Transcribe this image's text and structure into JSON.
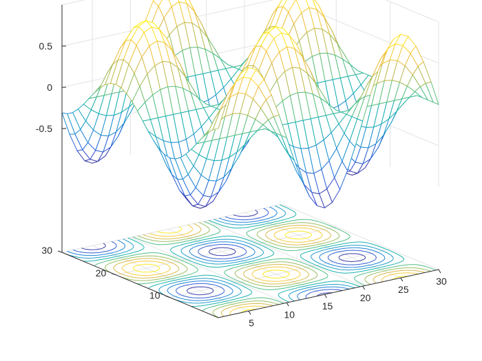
{
  "chart_data": {
    "type": "meshc",
    "surface": "z = sin(x*pi/10) * cos(y*pi/10)",
    "x": {
      "range": [
        1,
        30
      ],
      "ticks": [
        5,
        10,
        15,
        20,
        25,
        30
      ],
      "tick_labels": [
        "5",
        "10",
        "15",
        "20",
        "25",
        "30"
      ]
    },
    "y": {
      "range": [
        1,
        30
      ],
      "ticks": [
        10,
        20,
        30
      ],
      "tick_labels": [
        "10",
        "20",
        "30"
      ]
    },
    "z": {
      "range": [
        -1,
        1
      ],
      "ticks": [
        -0.5,
        0,
        0.5
      ],
      "tick_labels": [
        "-0.5",
        "0",
        "0.5"
      ]
    },
    "grid_size": [
      30,
      30
    ],
    "contour_levels": [
      -0.9,
      -0.7,
      -0.5,
      -0.3,
      -0.1,
      0.1,
      0.3,
      0.5,
      0.7,
      0.9
    ],
    "colormap": "parula",
    "colormap_stops": [
      "#352a87",
      "#3e4fd1",
      "#1d7bdc",
      "#1f9acd",
      "#18b1ae",
      "#53bf84",
      "#a5be5a",
      "#e7b743",
      "#fdd636",
      "#f9fb0e"
    ],
    "grid": true,
    "title": "",
    "xlabel": "",
    "ylabel": "",
    "zlabel": ""
  }
}
